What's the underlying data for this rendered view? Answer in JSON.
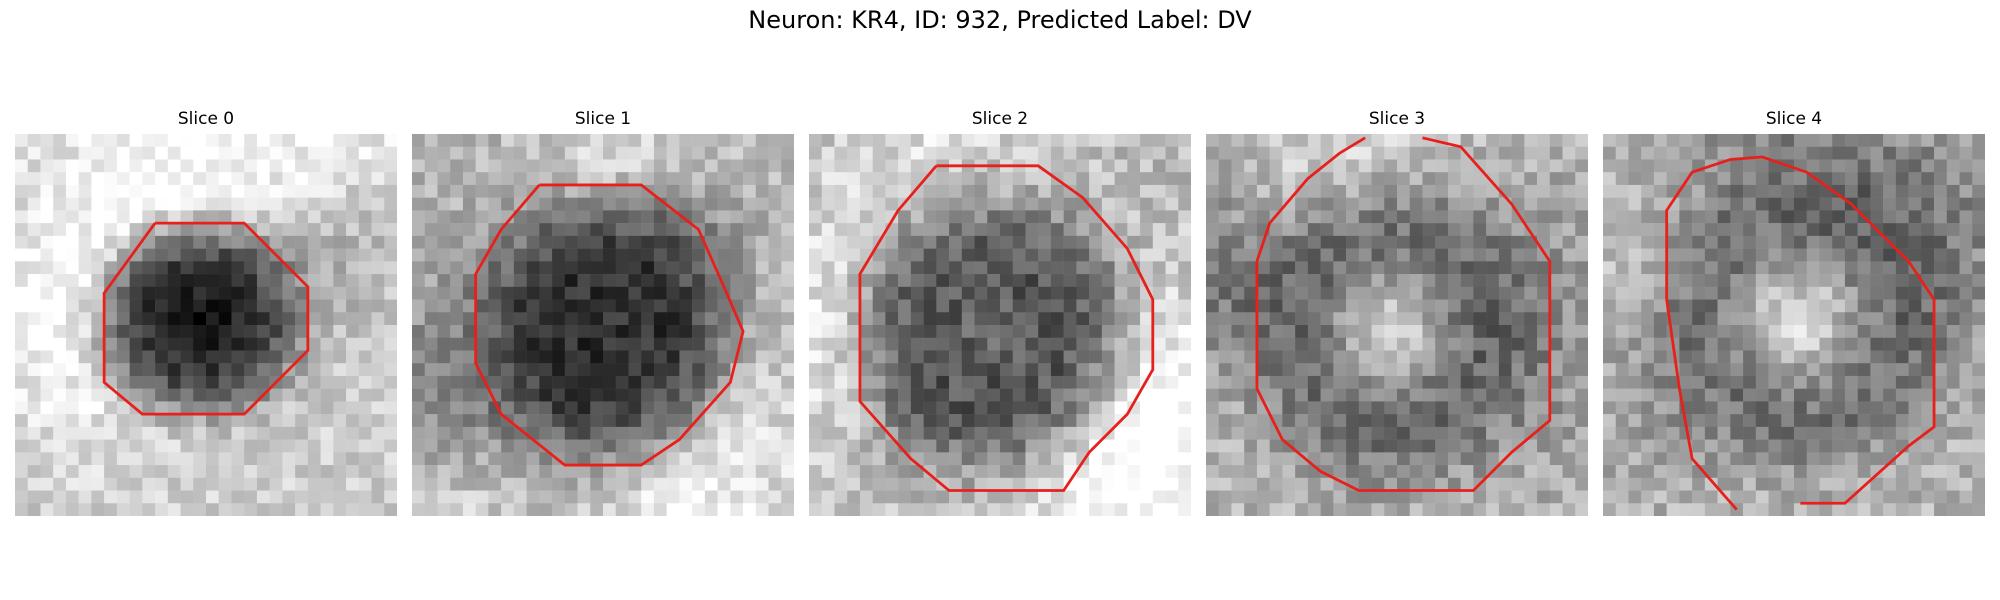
{
  "figure": {
    "title": "Neuron: KR4, ID: 932, Predicted Label: DV",
    "outline_color": "#e8201c",
    "panels": [
      {
        "title": "Slice 0",
        "style": "dark core, bright surround"
      },
      {
        "title": "Slice 1",
        "style": "large dark granular body"
      },
      {
        "title": "Slice 2",
        "style": "dark body, slightly lighter center"
      },
      {
        "title": "Slice 3",
        "style": "dark ring, bright center"
      },
      {
        "title": "Slice 4",
        "style": "dark ring, bright center"
      }
    ]
  }
}
